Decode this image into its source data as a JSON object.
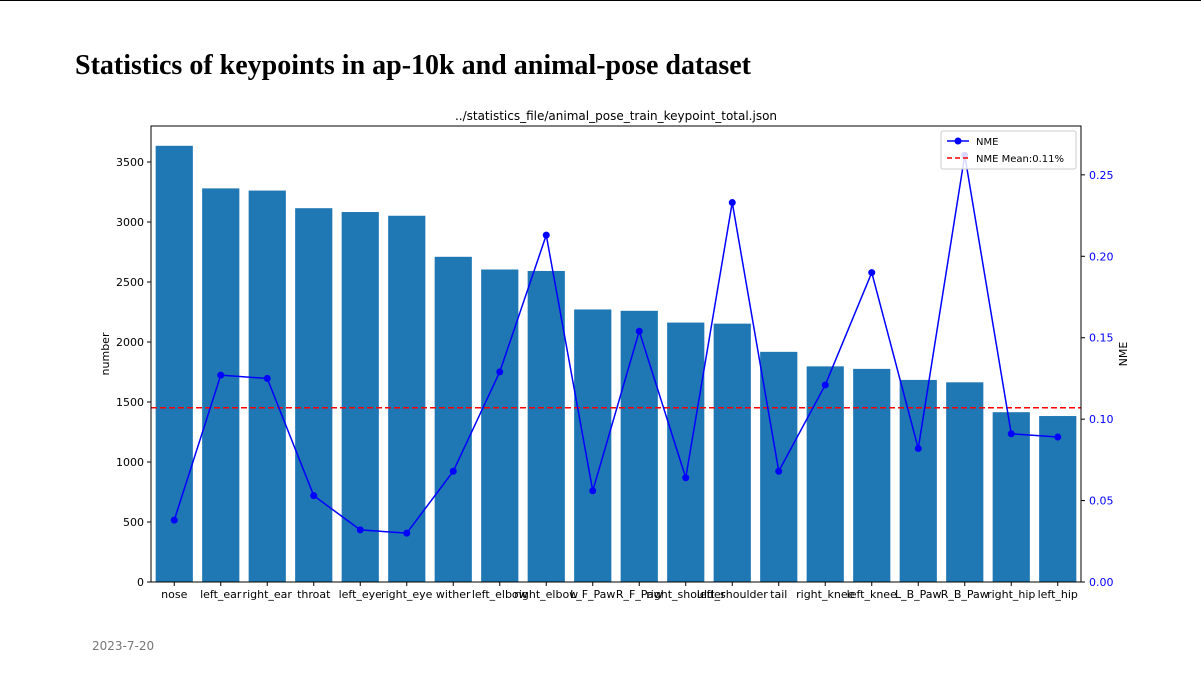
{
  "slide": {
    "title": "Statistics of keypoints in ap-10k and animal-pose dataset",
    "date": "2023-7-20"
  },
  "chart_data": {
    "type": "bar",
    "title": "../statistics_file/animal_pose_train_keypoint_total.json",
    "xlabel": "",
    "ylabel": "number",
    "y2label": "NME",
    "categories": [
      "nose",
      "left_ear",
      "right_ear",
      "throat",
      "left_eye",
      "right_eye",
      "wither",
      "left_elbow",
      "right_elbow",
      "L_F_Paw",
      "R_F_Paw",
      "right_shoulder",
      "left_shoulder",
      "tail",
      "right_knee",
      "left_knee",
      "L_B_Paw",
      "R_B_Paw",
      "right_hip",
      "left_hip"
    ],
    "series": [
      {
        "type": "bar",
        "axis": "left",
        "color": "#1f77b4",
        "values": [
          3635,
          3280,
          3262,
          3115,
          3083,
          3052,
          2710,
          2604,
          2592,
          2271,
          2260,
          2162,
          2153,
          1918,
          1797,
          1776,
          1684,
          1664,
          1415,
          1383
        ]
      },
      {
        "type": "line",
        "name": "NME",
        "axis": "right",
        "color": "#0000ff",
        "marker": "circle",
        "values": [
          0.038,
          0.127,
          0.125,
          0.053,
          0.032,
          0.03,
          0.068,
          0.129,
          0.213,
          0.056,
          0.154,
          0.064,
          0.233,
          0.068,
          0.121,
          0.19,
          0.082,
          0.262,
          0.091,
          0.089
        ]
      }
    ],
    "mean_line": {
      "name": "NME Mean:0.11%",
      "axis": "right",
      "value": 0.107,
      "color": "#ff0000",
      "style": "dashed"
    },
    "ylim": [
      0,
      3800
    ],
    "y2lim": [
      0,
      0.28
    ],
    "yticks": [
      0,
      500,
      1000,
      1500,
      2000,
      2500,
      3000,
      3500
    ],
    "y2ticks": [
      0.0,
      0.05,
      0.1,
      0.15,
      0.2,
      0.25
    ],
    "y2_tick_color": "#0000ff",
    "grid": false,
    "legend_position": "top-right"
  }
}
